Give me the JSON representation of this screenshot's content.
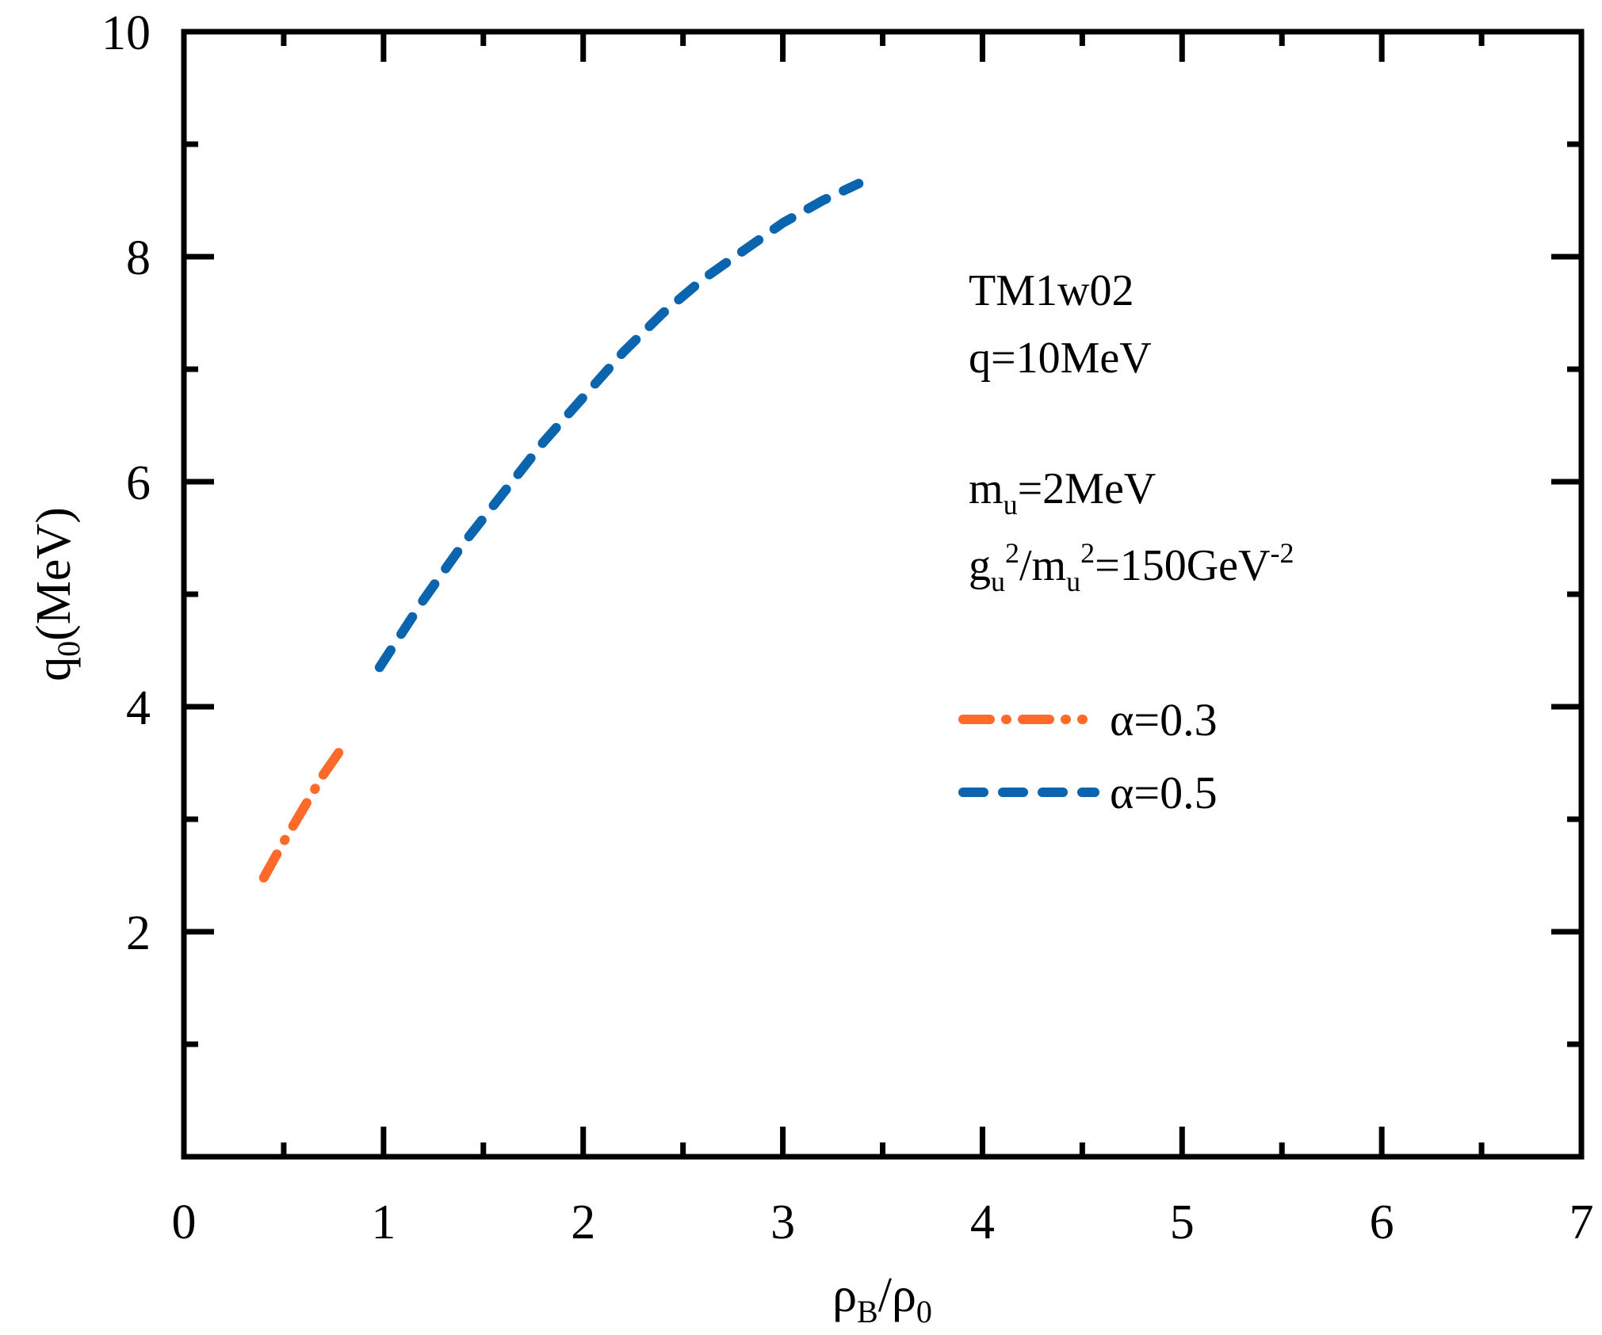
{
  "chart_data": {
    "type": "line",
    "title": "",
    "xlabel": {
      "main": "ρ",
      "sub1": "B",
      "slash": "/ρ",
      "sub2": "0"
    },
    "ylabel": {
      "main": "q",
      "sub": "0",
      "rest": "(MeV)"
    },
    "xlim": [
      0,
      7
    ],
    "ylim": [
      0,
      10
    ],
    "x_ticks": [
      "0",
      "1",
      "2",
      "3",
      "4",
      "5",
      "6",
      "7"
    ],
    "y_ticks": [
      {
        "value": 2,
        "label": "2"
      },
      {
        "value": 4,
        "label": "4"
      },
      {
        "value": 6,
        "label": "6"
      },
      {
        "value": 8,
        "label": "8"
      },
      {
        "value": 10,
        "label": "10"
      }
    ],
    "grid": false,
    "legend_position": "right-middle",
    "annotations": {
      "line1": "TM1w02",
      "line2": "q=10MeV",
      "line3": {
        "a": "m",
        "a_sub": "u",
        "b": "=2MeV"
      },
      "line4": {
        "a": "g",
        "a_sub": "u",
        "a_sup": "2",
        "slash": "/m",
        "b_sub": "u",
        "b_sup": "2",
        "c": "=150GeV",
        "c_sup": "-2"
      }
    },
    "series": [
      {
        "name": "α=0.3",
        "color": "#FF6A2B",
        "style": "dash-dot",
        "x": [
          0.4,
          0.5,
          0.6,
          0.7,
          0.81
        ],
        "y": [
          2.48,
          2.8,
          3.1,
          3.4,
          3.68
        ]
      },
      {
        "name": "α=0.5",
        "color": "#0A64AE",
        "style": "dashed",
        "x": [
          0.98,
          1.2,
          1.4,
          1.6,
          1.8,
          2.0,
          2.2,
          2.4,
          2.6,
          2.8,
          3.0,
          3.2,
          3.38
        ],
        "y": [
          4.35,
          4.95,
          5.45,
          5.9,
          6.35,
          6.75,
          7.15,
          7.5,
          7.8,
          8.05,
          8.3,
          8.5,
          8.65
        ]
      }
    ]
  }
}
